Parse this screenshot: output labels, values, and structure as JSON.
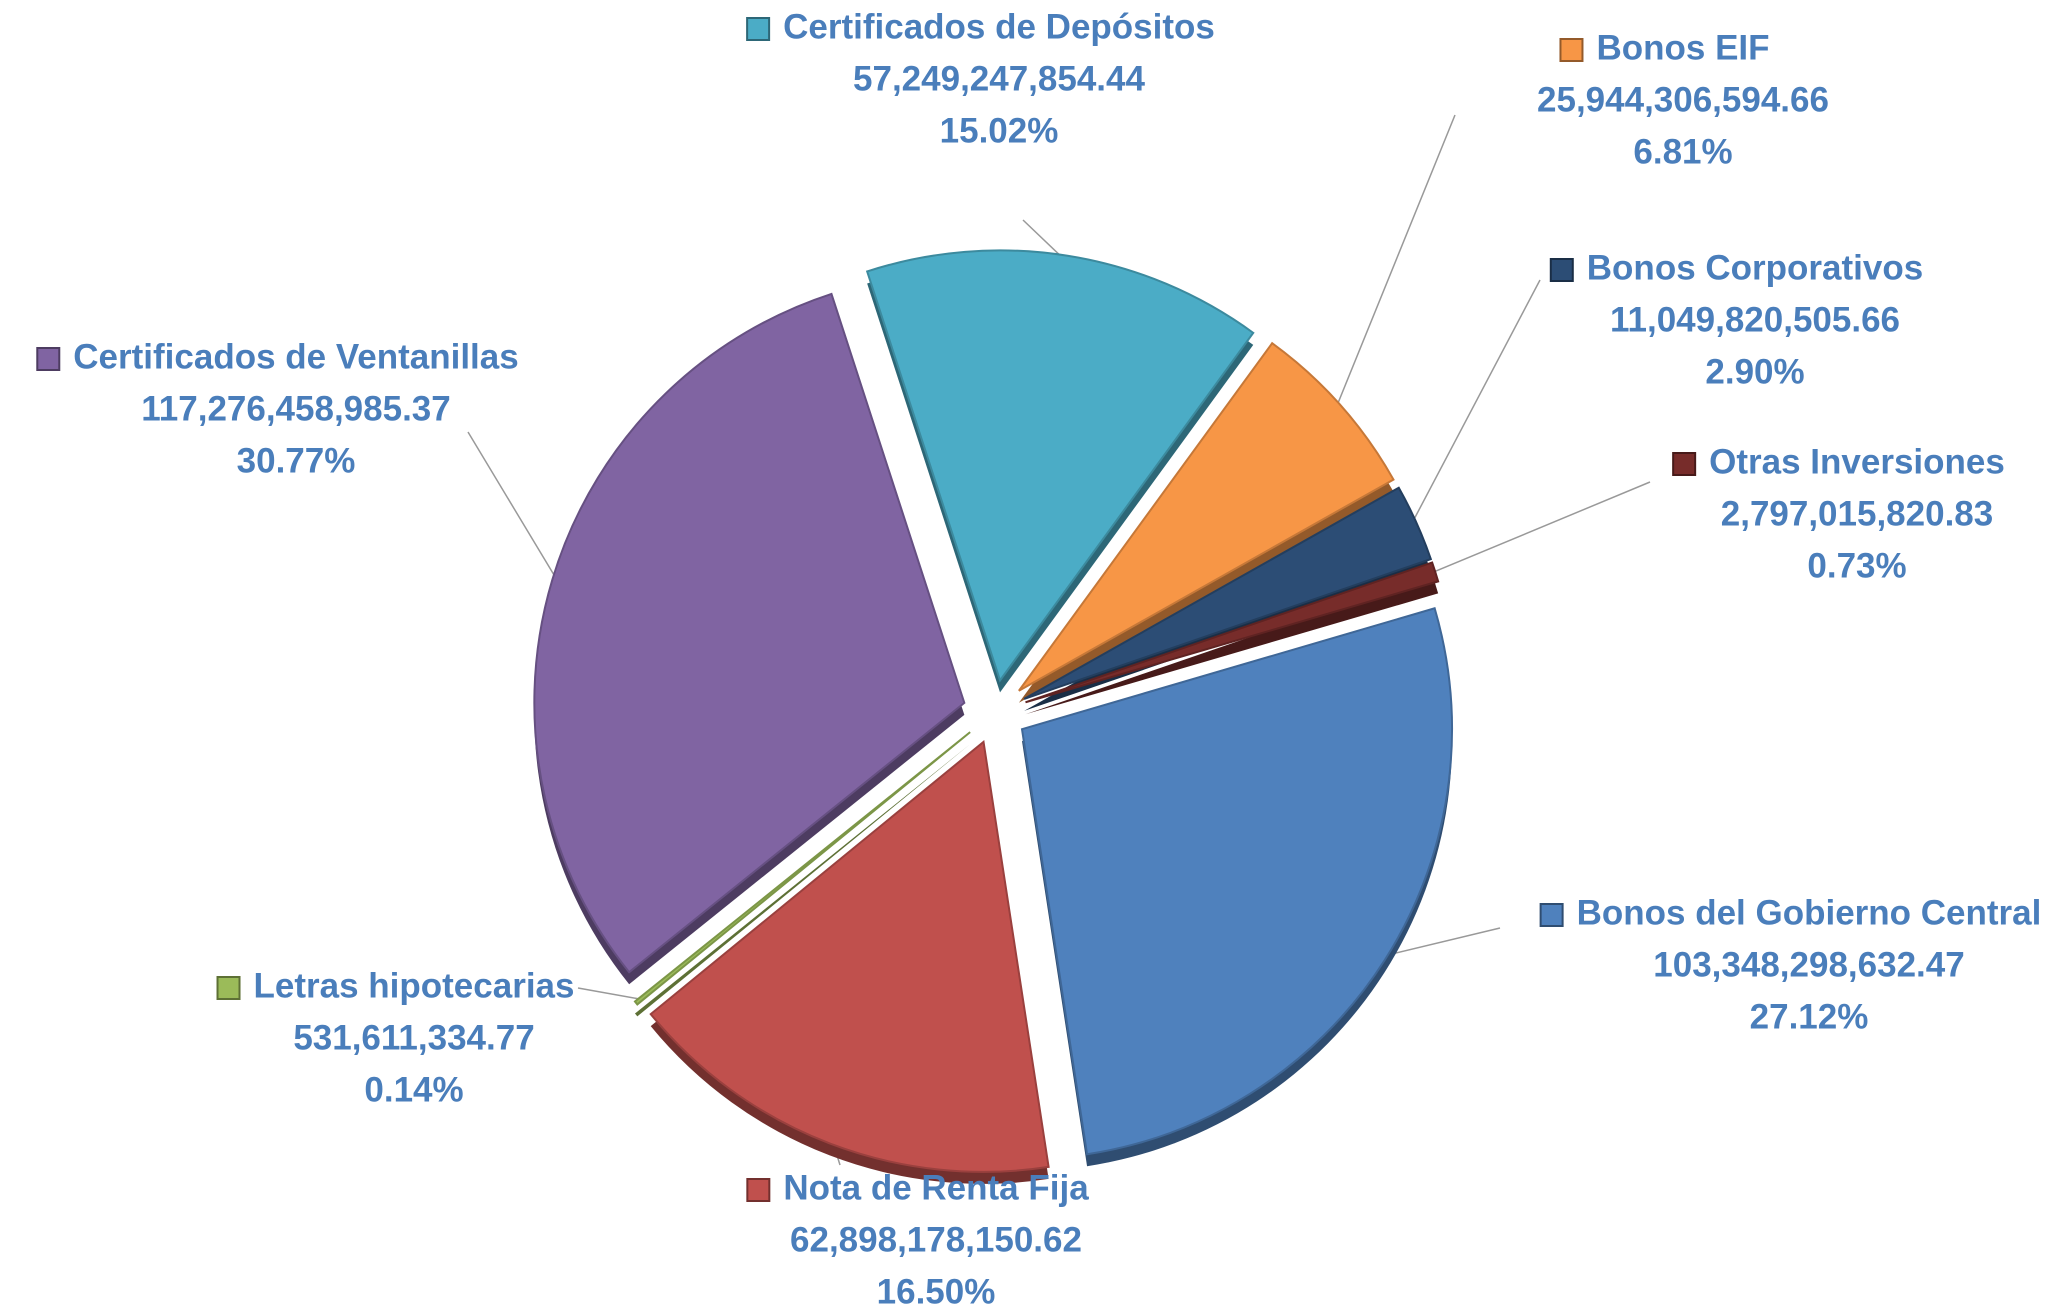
{
  "chart_data": {
    "type": "pie",
    "categories": [
      "Certificados de Depósitos",
      "Bonos EIF",
      "Bonos Corporativos",
      "Otras Inversiones",
      "Bonos del Gobierno Central",
      "Nota de Renta Fija",
      "Letras hipotecarias",
      "Certificados de Ventanillas"
    ],
    "values": [
      57249247854.44,
      25944306594.66,
      11049820505.66,
      2797015820.83,
      103348298632.47,
      62898178150.62,
      531611334.77,
      117276458985.37
    ],
    "value_labels": [
      "57,249,247,854.44",
      "25,944,306,594.66",
      "11,049,820,505.66",
      "2,797,015,820.83",
      "103,348,298,632.47",
      "62,898,178,150.62",
      "531,611,334.77",
      "117,276,458,985.37"
    ],
    "percentages": [
      15.02,
      6.81,
      2.9,
      0.73,
      27.12,
      16.5,
      0.14,
      30.77
    ],
    "percentage_labels": [
      "15.02%",
      "6.81%",
      "2.90%",
      "0.73%",
      "27.12%",
      "16.50%",
      "0.14%",
      "30.77%"
    ],
    "colors": [
      "#4bacc6",
      "#f79646",
      "#2c4d75",
      "#772c2a",
      "#4f81bd",
      "#c0504d",
      "#9bbb59",
      "#8064a2"
    ]
  }
}
